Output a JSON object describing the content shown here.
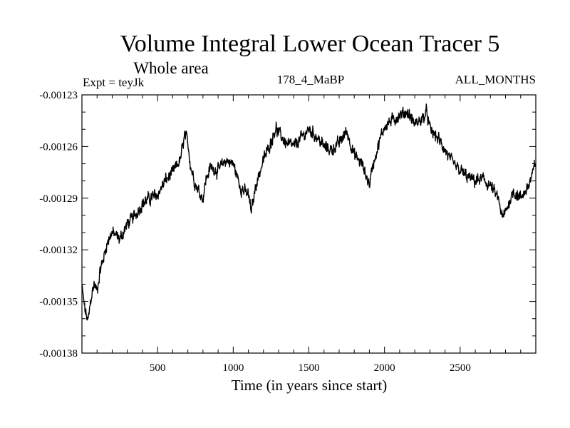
{
  "chart_data": {
    "type": "line",
    "title": "Volume Integral Lower Ocean Tracer 5",
    "subtitle": "Whole area",
    "annotations": {
      "left": "Expt = teyJk",
      "center": "178_4_MaBP",
      "right": "ALL_MONTHS"
    },
    "xlabel": "Time (in years since start)",
    "ylabel": "",
    "xlim": [
      0,
      3000
    ],
    "ylim": [
      -0.00138,
      -0.00123
    ],
    "xticks": [
      500,
      1000,
      1500,
      2000,
      2500
    ],
    "xtick_labels": [
      "500",
      "1000",
      "1500",
      "2000",
      "2500"
    ],
    "yticks": [
      -0.00123,
      -0.00126,
      -0.00129,
      -0.00132,
      -0.00135,
      -0.00138
    ],
    "ytick_labels": [
      "-0.00123",
      "-0.00126",
      "-0.00129",
      "-0.00132",
      "-0.00135",
      "-0.00138"
    ],
    "grid": false,
    "series": [
      {
        "name": "Volume Integral Lower Ocean Tracer 5",
        "color": "#000000",
        "x": [
          0,
          20,
          40,
          60,
          80,
          100,
          120,
          140,
          160,
          180,
          200,
          250,
          300,
          350,
          400,
          450,
          500,
          550,
          600,
          650,
          680,
          700,
          720,
          750,
          800,
          820,
          850,
          900,
          950,
          1000,
          1050,
          1100,
          1120,
          1150,
          1200,
          1250,
          1280,
          1300,
          1350,
          1400,
          1450,
          1500,
          1550,
          1600,
          1650,
          1700,
          1750,
          1800,
          1850,
          1900,
          1920,
          1950,
          2000,
          2050,
          2100,
          2150,
          2200,
          2250,
          2280,
          2300,
          2350,
          2400,
          2450,
          2500,
          2550,
          2600,
          2650,
          2700,
          2750,
          2780,
          2800,
          2850,
          2900,
          2950,
          2980,
          3000
        ],
        "values": [
          -0.001342,
          -0.001355,
          -0.001362,
          -0.001348,
          -0.00134,
          -0.001344,
          -0.001332,
          -0.001326,
          -0.001318,
          -0.001313,
          -0.00131,
          -0.001314,
          -0.001305,
          -0.0013,
          -0.001293,
          -0.00129,
          -0.001288,
          -0.00128,
          -0.001275,
          -0.001268,
          -0.001253,
          -0.001258,
          -0.001272,
          -0.001282,
          -0.00129,
          -0.001279,
          -0.001272,
          -0.001274,
          -0.001268,
          -0.00127,
          -0.001284,
          -0.001288,
          -0.001298,
          -0.001282,
          -0.001268,
          -0.001257,
          -0.001249,
          -0.001252,
          -0.001258,
          -0.00126,
          -0.001255,
          -0.00125,
          -0.001254,
          -0.00126,
          -0.001262,
          -0.001258,
          -0.001251,
          -0.001265,
          -0.00127,
          -0.001282,
          -0.001272,
          -0.001262,
          -0.001248,
          -0.001245,
          -0.001242,
          -0.00124,
          -0.001247,
          -0.001244,
          -0.00124,
          -0.00125,
          -0.001255,
          -0.001262,
          -0.00127,
          -0.001274,
          -0.001278,
          -0.00128,
          -0.001279,
          -0.001283,
          -0.00129,
          -0.001302,
          -0.001298,
          -0.001286,
          -0.00129,
          -0.001283,
          -0.001276,
          -0.001268
        ]
      }
    ]
  }
}
